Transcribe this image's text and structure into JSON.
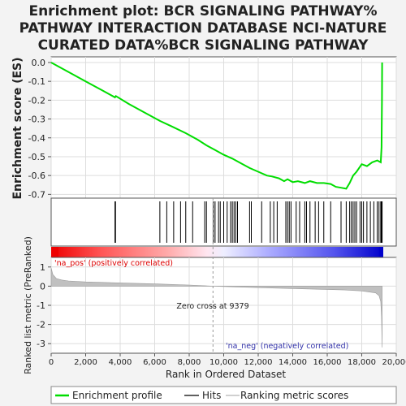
{
  "chart_data": {
    "type": "line",
    "title": {
      "line1": "Enrichment plot: BCR SIGNALING PATHWAY%",
      "line2": "PATHWAY INTERACTION DATABASE NCI-NATURE",
      "line3": "CURATED DATA%BCR SIGNALING PATHWAY"
    },
    "es_panel": {
      "ylabel": "Enrichment score (ES)",
      "ylim": [
        -0.72,
        0.03
      ],
      "yticks": [
        0.0,
        -0.1,
        -0.2,
        -0.3,
        -0.4,
        -0.5,
        -0.6,
        -0.7
      ],
      "ytick_labels": [
        "0.0",
        "-0.1",
        "-0.2",
        "-0.3",
        "-0.4",
        "-0.5",
        "-0.6",
        "-0.7"
      ],
      "line_color": "#00dd00",
      "x": [
        0,
        1000,
        2000,
        3000,
        3700,
        3750,
        4500,
        5500,
        6300,
        7000,
        7800,
        8500,
        9000,
        9500,
        10000,
        10500,
        11000,
        11500,
        12000,
        12500,
        12800,
        13200,
        13500,
        13700,
        14000,
        14300,
        14700,
        15000,
        15400,
        15800,
        16200,
        16500,
        16800,
        17100,
        17300,
        17500,
        17700,
        18000,
        18300,
        18600,
        18900,
        19100,
        19150,
        19160,
        19170,
        19180
      ],
      "y": [
        0.0,
        -0.05,
        -0.1,
        -0.15,
        -0.185,
        -0.178,
        -0.22,
        -0.27,
        -0.31,
        -0.34,
        -0.375,
        -0.41,
        -0.44,
        -0.465,
        -0.49,
        -0.51,
        -0.535,
        -0.56,
        -0.58,
        -0.6,
        -0.605,
        -0.615,
        -0.63,
        -0.62,
        -0.635,
        -0.63,
        -0.64,
        -0.63,
        -0.64,
        -0.64,
        -0.645,
        -0.66,
        -0.665,
        -0.67,
        -0.64,
        -0.6,
        -0.58,
        -0.54,
        -0.55,
        -0.53,
        -0.52,
        -0.53,
        -0.45,
        -0.35,
        -0.2,
        0.0
      ]
    },
    "hits_panel": {
      "positions": [
        3700,
        3730,
        6300,
        6700,
        7100,
        7500,
        7800,
        8200,
        8900,
        9000,
        9400,
        9500,
        9700,
        9800,
        10000,
        10200,
        10400,
        10500,
        10600,
        10700,
        10800,
        11500,
        11600,
        12200,
        12700,
        12900,
        13100,
        13600,
        13700,
        13800,
        13900,
        14200,
        14400,
        14700,
        14800,
        15000,
        15300,
        15500,
        15800,
        16200,
        16800,
        17100,
        17300,
        17400,
        17500,
        17600,
        17700,
        17900,
        18000,
        18100,
        18300,
        18500,
        18700,
        18900,
        19000,
        19100,
        19130,
        19160,
        19180
      ]
    },
    "metric_panel": {
      "ylabel": "Ranked list metric (PreRanked)",
      "ylim": [
        -3.5,
        1.5
      ],
      "yticks": [
        1,
        0,
        -1,
        -2,
        -3
      ],
      "ytick_labels": [
        "1",
        "0",
        "-1",
        "-2",
        "-3"
      ],
      "x": [
        0,
        100,
        300,
        600,
        1000,
        2000,
        4000,
        6000,
        8000,
        9379,
        11000,
        13000,
        15000,
        17000,
        18000,
        18800,
        19000,
        19100,
        19150,
        19180
      ],
      "values": [
        0.95,
        0.6,
        0.4,
        0.32,
        0.27,
        0.22,
        0.17,
        0.12,
        0.06,
        0.0,
        -0.05,
        -0.1,
        -0.15,
        -0.2,
        -0.25,
        -0.35,
        -0.5,
        -0.8,
        -1.6,
        -3.2
      ],
      "zero_cross_label": "Zero cross at 9379",
      "zero_cross": 9379,
      "pos_label": "'na_pos' (positively correlated)",
      "neg_label": "'na_neg' (negatively correlated)"
    },
    "xaxis": {
      "xlabel": "Rank in Ordered Dataset",
      "xlim": [
        0,
        20000
      ],
      "xticks": [
        0,
        2000,
        4000,
        6000,
        8000,
        10000,
        12000,
        14000,
        16000,
        18000,
        20000
      ],
      "xtick_labels": [
        "0",
        "2,000",
        "4,000",
        "6,000",
        "8,000",
        "10,000",
        "12,000",
        "14,000",
        "16,000",
        "18,000",
        "20,000"
      ]
    },
    "colors": {
      "pos": "#ee0000",
      "neg": "#0000cc",
      "fill": "#c0c0c0",
      "frame": "#555555",
      "pos_text": "#dd0000",
      "neg_text": "#3333aa"
    },
    "legend": {
      "placement": "bottom",
      "items": [
        {
          "label": "Enrichment profile",
          "color": "#00dd00"
        },
        {
          "label": "Hits",
          "color": "#000000"
        },
        {
          "label": "Ranking metric scores",
          "color": "#c0c0c0"
        }
      ]
    }
  }
}
